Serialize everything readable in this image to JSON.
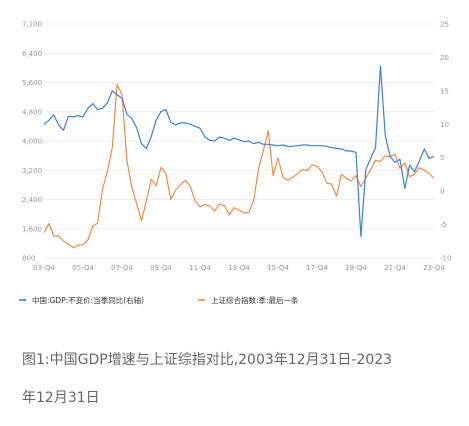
{
  "chart_data": {
    "type": "line",
    "title": "",
    "x_tick_labels": [
      "03-Q4",
      "05-Q4",
      "07-Q4",
      "09-Q4",
      "11-Q4",
      "13-Q4",
      "15-Q4",
      "17-Q4",
      "19-Q4",
      "21-Q4",
      "23-Q4"
    ],
    "y_left": {
      "ticks": [
        "7,200",
        "6,400",
        "5,600",
        "4,800",
        "4,000",
        "3,200",
        "2,400",
        "1,600",
        "800"
      ],
      "range": [
        800,
        7200
      ]
    },
    "y_right": {
      "ticks": [
        "25",
        "20",
        "15",
        "10",
        "5",
        "0",
        "-5",
        "-10"
      ],
      "range": [
        -10,
        25
      ]
    },
    "grid": "horizontal",
    "legend_position": "bottom",
    "series": [
      {
        "name": "中国:GDP:不变价:当季同比(右轴)",
        "axis": "right",
        "color": "#3d7fd6",
        "x": [
          "2003-Q4",
          "2004-Q1",
          "2004-Q2",
          "2004-Q3",
          "2004-Q4",
          "2005-Q1",
          "2005-Q2",
          "2005-Q3",
          "2005-Q4",
          "2006-Q1",
          "2006-Q2",
          "2006-Q3",
          "2006-Q4",
          "2007-Q1",
          "2007-Q2",
          "2007-Q3",
          "2007-Q4",
          "2008-Q1",
          "2008-Q2",
          "2008-Q3",
          "2008-Q4",
          "2009-Q1",
          "2009-Q2",
          "2009-Q3",
          "2009-Q4",
          "2010-Q1",
          "2010-Q2",
          "2010-Q3",
          "2010-Q4",
          "2011-Q1",
          "2011-Q2",
          "2011-Q3",
          "2011-Q4",
          "2012-Q1",
          "2012-Q2",
          "2012-Q3",
          "2012-Q4",
          "2013-Q1",
          "2013-Q2",
          "2013-Q3",
          "2013-Q4",
          "2014-Q1",
          "2014-Q2",
          "2014-Q3",
          "2014-Q4",
          "2015-Q1",
          "2015-Q2",
          "2015-Q3",
          "2015-Q4",
          "2016-Q1",
          "2016-Q2",
          "2016-Q3",
          "2016-Q4",
          "2017-Q1",
          "2017-Q2",
          "2017-Q3",
          "2017-Q4",
          "2018-Q1",
          "2018-Q2",
          "2018-Q3",
          "2018-Q4",
          "2019-Q1",
          "2019-Q2",
          "2019-Q3",
          "2019-Q4",
          "2020-Q1",
          "2020-Q2",
          "2020-Q3",
          "2020-Q4",
          "2021-Q1",
          "2021-Q2",
          "2021-Q3",
          "2021-Q4",
          "2022-Q1",
          "2022-Q2",
          "2022-Q3",
          "2022-Q4",
          "2023-Q1",
          "2023-Q2",
          "2023-Q3",
          "2023-Q4"
        ],
        "values": [
          10.0,
          10.6,
          11.4,
          9.9,
          9.1,
          11.2,
          11.1,
          11.3,
          11.1,
          12.4,
          13.1,
          12.2,
          12.4,
          13.2,
          15.0,
          14.4,
          13.9,
          11.5,
          10.9,
          9.5,
          7.1,
          6.4,
          8.2,
          10.6,
          11.9,
          12.2,
          10.3,
          9.9,
          10.2,
          10.2,
          10.0,
          9.7,
          9.4,
          8.1,
          7.6,
          7.5,
          8.1,
          7.9,
          7.6,
          7.9,
          7.7,
          7.4,
          7.5,
          7.1,
          7.3,
          7.0,
          7.0,
          6.9,
          6.8,
          6.9,
          6.7,
          6.7,
          6.8,
          6.9,
          6.9,
          6.8,
          6.8,
          6.8,
          6.7,
          6.5,
          6.4,
          6.3,
          6.0,
          6.0,
          5.8,
          -6.8,
          3.2,
          4.9,
          6.5,
          18.7,
          8.3,
          5.2,
          4.3,
          4.8,
          0.4,
          3.9,
          2.9,
          4.5,
          6.3,
          4.9,
          5.2
        ]
      },
      {
        "name": "上证综合指数:季:最后一条",
        "axis": "left",
        "color": "#f08a4b",
        "x": [
          "2003-Q4",
          "2004-Q1",
          "2004-Q2",
          "2004-Q3",
          "2004-Q4",
          "2005-Q1",
          "2005-Q2",
          "2005-Q3",
          "2005-Q4",
          "2006-Q1",
          "2006-Q2",
          "2006-Q3",
          "2006-Q4",
          "2007-Q1",
          "2007-Q2",
          "2007-Q3",
          "2007-Q4",
          "2008-Q1",
          "2008-Q2",
          "2008-Q3",
          "2008-Q4",
          "2009-Q1",
          "2009-Q2",
          "2009-Q3",
          "2009-Q4",
          "2010-Q1",
          "2010-Q2",
          "2010-Q3",
          "2010-Q4",
          "2011-Q1",
          "2011-Q2",
          "2011-Q3",
          "2011-Q4",
          "2012-Q1",
          "2012-Q2",
          "2012-Q3",
          "2012-Q4",
          "2013-Q1",
          "2013-Q2",
          "2013-Q3",
          "2013-Q4",
          "2014-Q1",
          "2014-Q2",
          "2014-Q3",
          "2014-Q4",
          "2015-Q1",
          "2015-Q2",
          "2015-Q3",
          "2015-Q4",
          "2016-Q1",
          "2016-Q2",
          "2016-Q3",
          "2016-Q4",
          "2017-Q1",
          "2017-Q2",
          "2017-Q3",
          "2017-Q4",
          "2018-Q1",
          "2018-Q2",
          "2018-Q3",
          "2018-Q4",
          "2019-Q1",
          "2019-Q2",
          "2019-Q3",
          "2019-Q4",
          "2020-Q1",
          "2020-Q2",
          "2020-Q3",
          "2020-Q4",
          "2021-Q1",
          "2021-Q2",
          "2021-Q3",
          "2021-Q4",
          "2022-Q1",
          "2022-Q2",
          "2022-Q3",
          "2022-Q4",
          "2023-Q1",
          "2023-Q2",
          "2023-Q3",
          "2023-Q4"
        ],
        "values": [
          1497,
          1742,
          1399,
          1396,
          1266,
          1181,
          1080,
          1155,
          1161,
          1298,
          1672,
          1753,
          2675,
          3183,
          3821,
          5552,
          5262,
          3473,
          2736,
          2294,
          1821,
          2373,
          2959,
          2779,
          3277,
          3109,
          2398,
          2656,
          2808,
          2928,
          2762,
          2359,
          2199,
          2263,
          2225,
          2086,
          2269,
          2237,
          1979,
          2175,
          2116,
          2033,
          2048,
          2364,
          3234,
          3748,
          4277,
          3053,
          3539,
          3004,
          2930,
          3005,
          3104,
          3223,
          3192,
          3349,
          3307,
          3169,
          2847,
          2821,
          2494,
          3091,
          2979,
          2905,
          3050,
          2750,
          2985,
          3218,
          3473,
          3441,
          3591,
          3568,
          3640,
          3253,
          3399,
          3024,
          3089,
          3273,
          3202,
          3110,
          2975
        ]
      }
    ]
  },
  "caption": {
    "line1": "图1:中国GDP增速与上证综指对比,2003年12月31日-2023",
    "line2": "年12月31日"
  }
}
